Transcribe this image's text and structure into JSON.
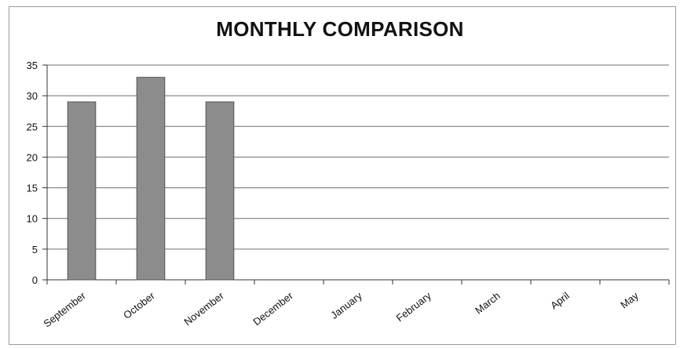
{
  "chart_data": {
    "type": "bar",
    "title": "MONTHLY COMPARISON",
    "xlabel": "",
    "ylabel": "",
    "categories": [
      "September",
      "October",
      "November",
      "December",
      "January",
      "February",
      "March",
      "April",
      "May"
    ],
    "values": [
      29,
      33,
      29,
      null,
      null,
      null,
      null,
      null,
      null
    ],
    "ylim": [
      0,
      35
    ],
    "yticks": [
      0,
      5,
      10,
      15,
      20,
      25,
      30,
      35
    ],
    "grid": true,
    "legend": "none",
    "bar_color": "#8c8c8c"
  }
}
